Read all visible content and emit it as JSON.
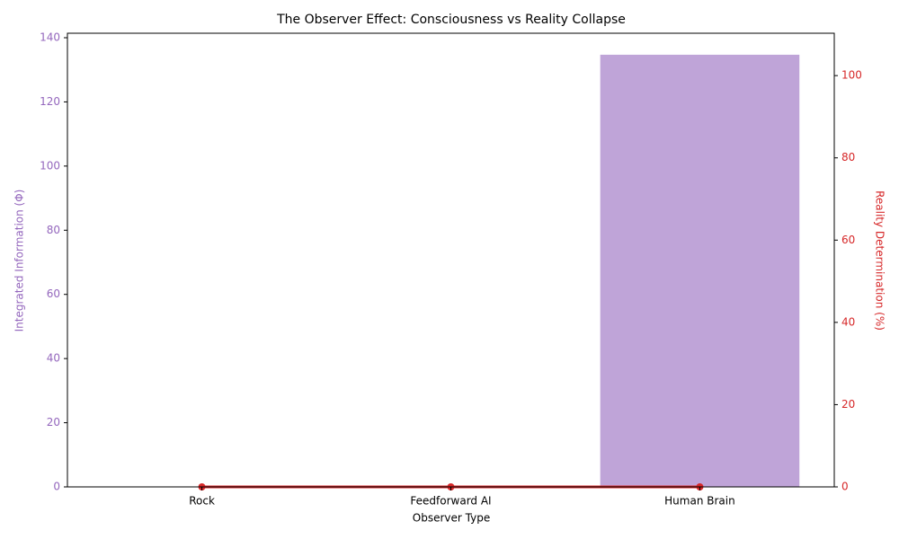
{
  "chart_data": {
    "type": "bar",
    "title": "The Observer Effect: Consciousness vs Reality Collapse",
    "xlabel": "Observer Type",
    "ylabel": "Integrated Information (Φ)",
    "y2label": "Reality Determination (%)",
    "categories": [
      "Rock",
      "Feedforward AI",
      "Human Brain"
    ],
    "series": [
      {
        "type": "bar",
        "color": "#bfa4d8",
        "values": [
          0,
          0,
          134.7
        ]
      },
      {
        "type": "line",
        "color": "#d62728",
        "values": [
          0,
          0,
          0
        ],
        "axis": "y2"
      }
    ],
    "ylim": [
      0,
      141.4
    ],
    "yticks": [
      0,
      20,
      40,
      60,
      80,
      100,
      120,
      140
    ],
    "y2lim": [
      0,
      110.3
    ],
    "y2ticks": [
      0,
      20,
      40,
      60,
      80,
      100
    ],
    "ycolor": "#9467bd",
    "y2color": "#d62728"
  }
}
